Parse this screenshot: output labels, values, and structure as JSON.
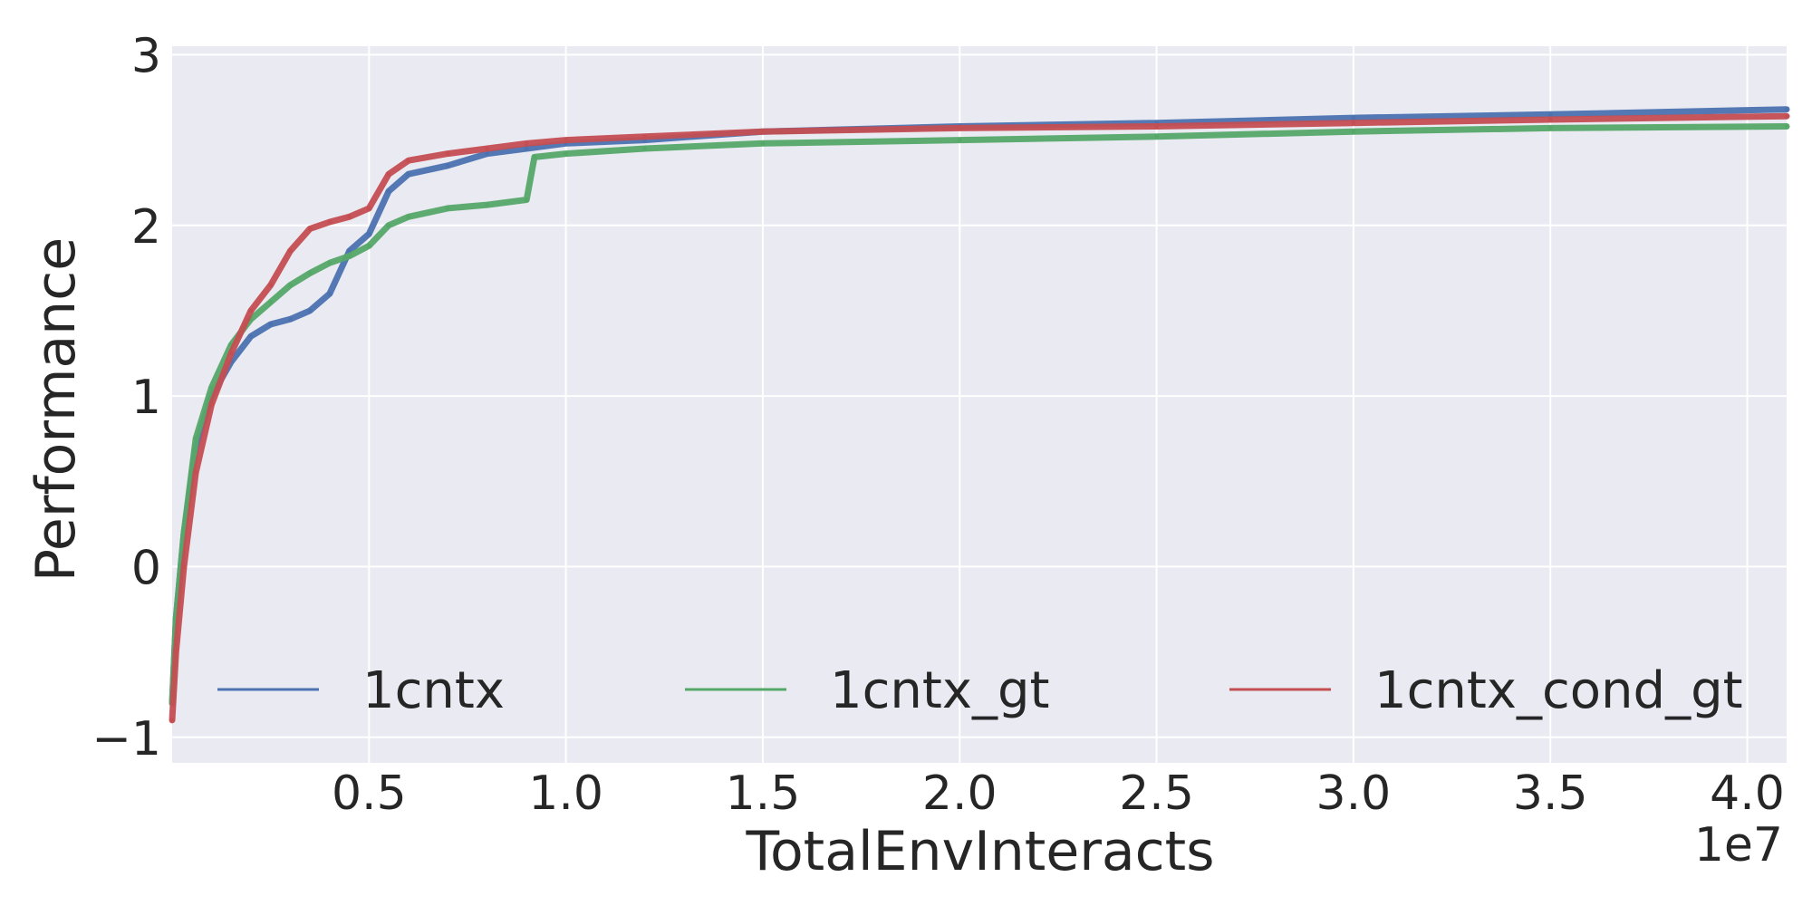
{
  "chart_data": {
    "type": "line",
    "title": "",
    "xlabel": "TotalEnvInteracts",
    "ylabel": "Performance",
    "x_offset_label": "1e7",
    "xlim": [
      0,
      41000000
    ],
    "ylim": [
      -1.15,
      3.05
    ],
    "grid": true,
    "legend_position": "bottom",
    "x_ticks": [
      {
        "value": 5000000,
        "label": "0.5"
      },
      {
        "value": 10000000,
        "label": "1.0"
      },
      {
        "value": 15000000,
        "label": "1.5"
      },
      {
        "value": 20000000,
        "label": "2.0"
      },
      {
        "value": 25000000,
        "label": "2.5"
      },
      {
        "value": 30000000,
        "label": "3.0"
      },
      {
        "value": 35000000,
        "label": "3.5"
      },
      {
        "value": 40000000,
        "label": "4.0"
      }
    ],
    "y_ticks": [
      {
        "value": -1,
        "label": "−1"
      },
      {
        "value": 0,
        "label": "0"
      },
      {
        "value": 1,
        "label": "1"
      },
      {
        "value": 2,
        "label": "2"
      },
      {
        "value": 3,
        "label": "3"
      }
    ],
    "series": [
      {
        "name": "1cntx",
        "color": "#4c72b0",
        "x": [
          0,
          100000,
          300000,
          600000,
          1000000,
          1500000,
          2000000,
          2500000,
          3000000,
          3500000,
          4000000,
          4500000,
          5000000,
          5500000,
          6000000,
          7000000,
          8000000,
          9000000,
          10000000,
          12000000,
          15000000,
          20000000,
          25000000,
          30000000,
          35000000,
          41000000
        ],
        "y": [
          -0.8,
          -0.3,
          0.2,
          0.7,
          1.0,
          1.2,
          1.35,
          1.42,
          1.45,
          1.5,
          1.6,
          1.85,
          1.95,
          2.2,
          2.3,
          2.35,
          2.42,
          2.45,
          2.48,
          2.5,
          2.55,
          2.58,
          2.6,
          2.63,
          2.65,
          2.68
        ]
      },
      {
        "name": "1cntx_gt",
        "color": "#55a868",
        "x": [
          0,
          100000,
          300000,
          600000,
          1000000,
          1500000,
          2000000,
          2500000,
          3000000,
          3500000,
          4000000,
          4500000,
          5000000,
          5500000,
          6000000,
          7000000,
          8000000,
          9000000,
          9200000,
          10000000,
          12000000,
          15000000,
          20000000,
          25000000,
          30000000,
          35000000,
          41000000
        ],
        "y": [
          -0.8,
          -0.3,
          0.2,
          0.75,
          1.05,
          1.3,
          1.45,
          1.55,
          1.65,
          1.72,
          1.78,
          1.82,
          1.88,
          2.0,
          2.05,
          2.1,
          2.12,
          2.15,
          2.4,
          2.42,
          2.45,
          2.48,
          2.5,
          2.52,
          2.55,
          2.57,
          2.58
        ]
      },
      {
        "name": "1cntx_cond_gt",
        "color": "#c44e52",
        "x": [
          0,
          100000,
          300000,
          600000,
          1000000,
          1500000,
          2000000,
          2500000,
          3000000,
          3500000,
          4000000,
          4500000,
          5000000,
          5500000,
          6000000,
          7000000,
          8000000,
          9000000,
          10000000,
          12000000,
          15000000,
          20000000,
          25000000,
          30000000,
          35000000,
          41000000
        ],
        "y": [
          -0.9,
          -0.5,
          0.0,
          0.55,
          0.95,
          1.25,
          1.5,
          1.65,
          1.85,
          1.98,
          2.02,
          2.05,
          2.1,
          2.3,
          2.38,
          2.42,
          2.45,
          2.48,
          2.5,
          2.52,
          2.55,
          2.57,
          2.58,
          2.6,
          2.62,
          2.64
        ]
      }
    ]
  }
}
